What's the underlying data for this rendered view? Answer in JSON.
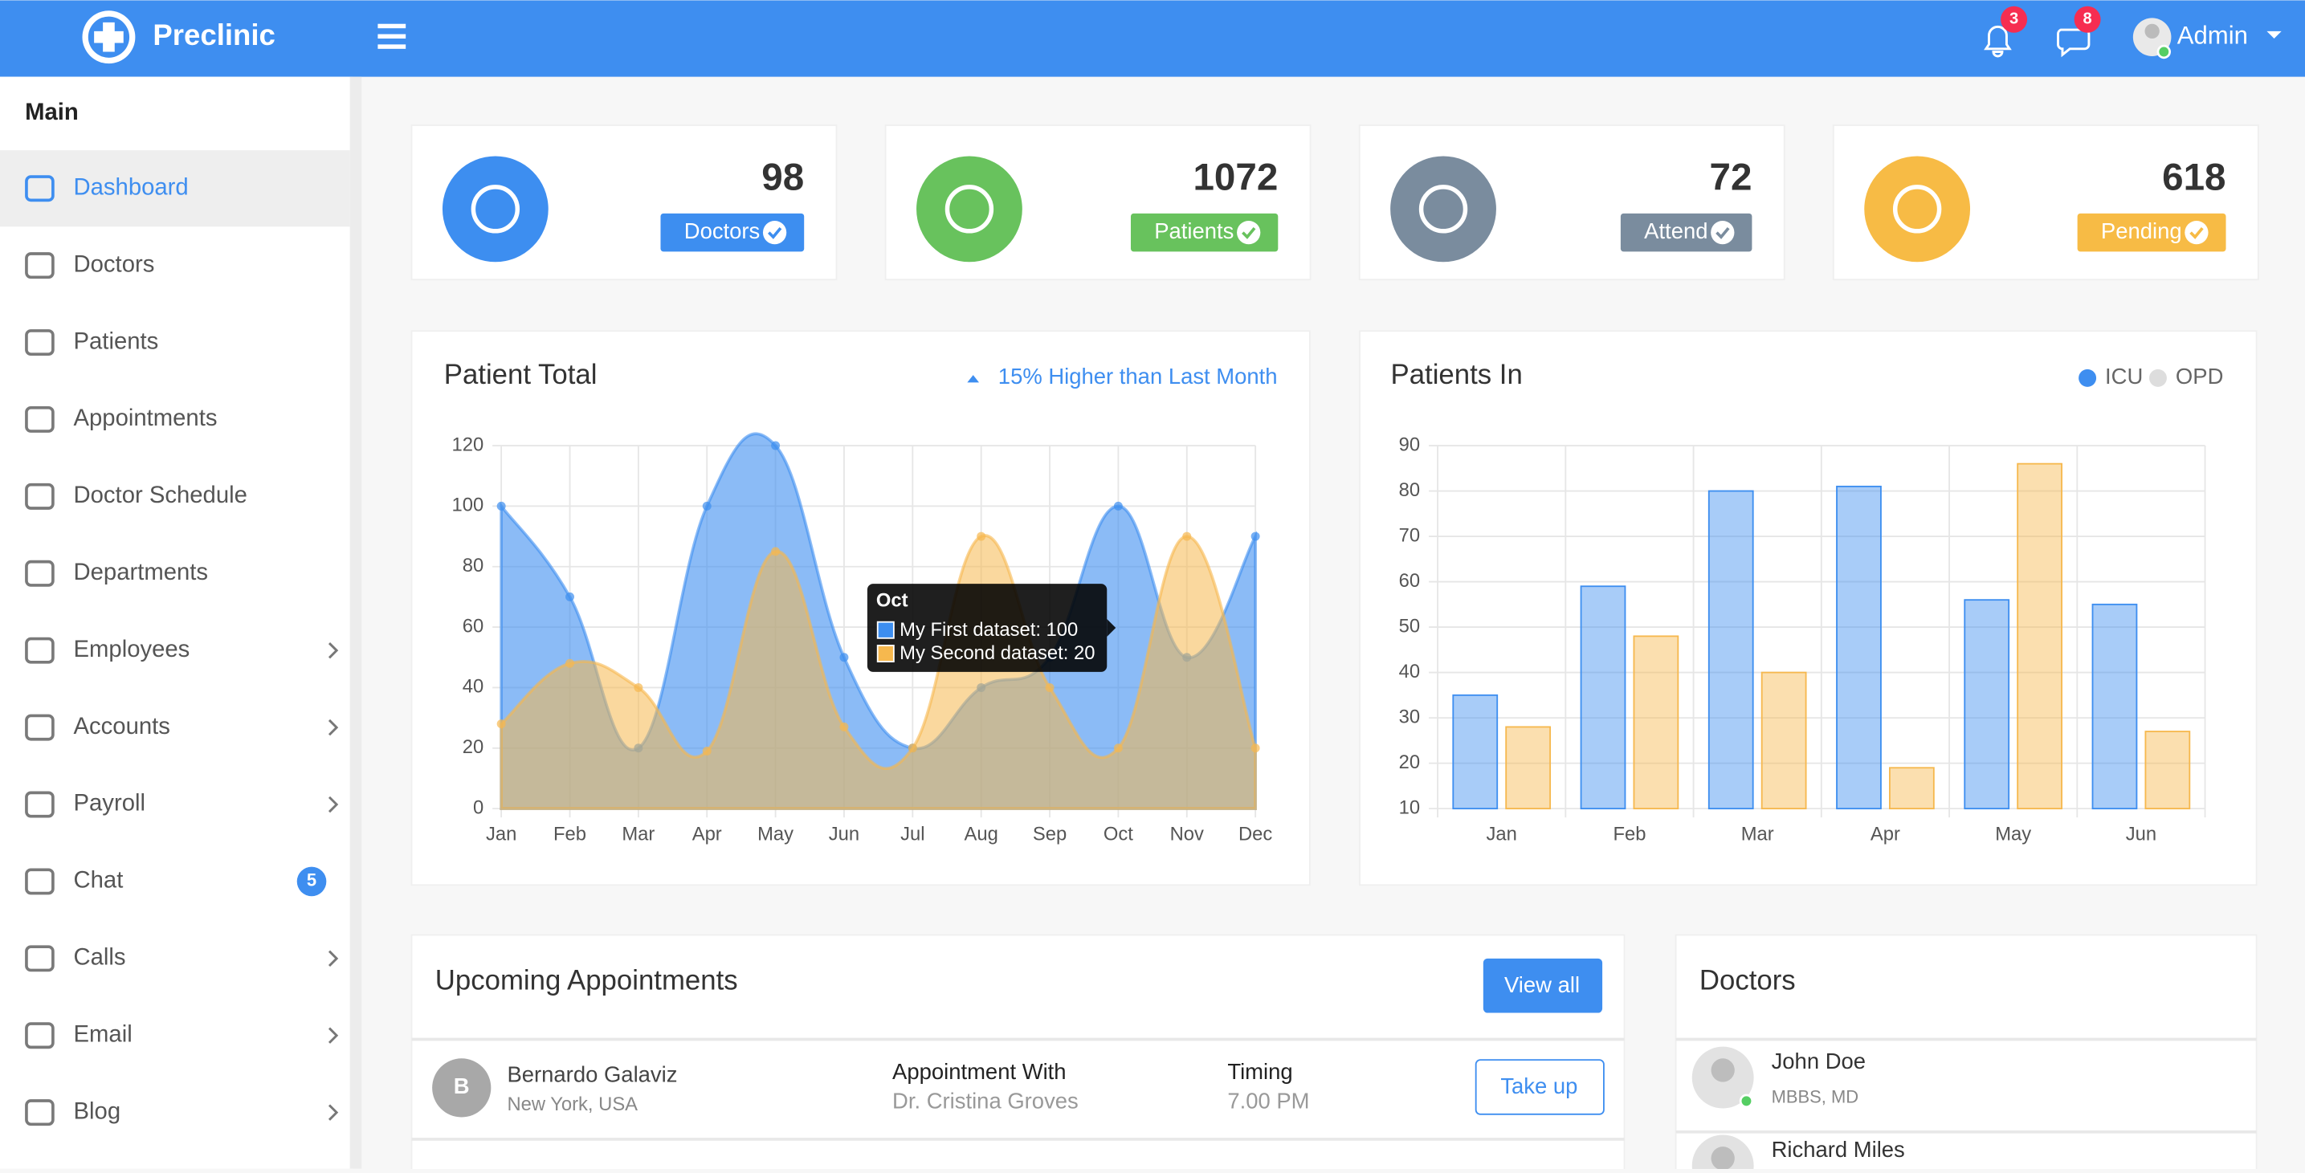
{
  "header": {
    "brand": "Preclinic",
    "notifications": "3",
    "messages": "8",
    "user": "Admin"
  },
  "sidebar": {
    "title": "Main",
    "items": [
      {
        "label": "Dashboard",
        "active": true
      },
      {
        "label": "Doctors"
      },
      {
        "label": "Patients"
      },
      {
        "label": "Appointments"
      },
      {
        "label": "Doctor Schedule"
      },
      {
        "label": "Departments"
      },
      {
        "label": "Employees",
        "submenu": true
      },
      {
        "label": "Accounts",
        "submenu": true
      },
      {
        "label": "Payroll",
        "submenu": true
      },
      {
        "label": "Chat",
        "badge": "5"
      },
      {
        "label": "Calls",
        "submenu": true
      },
      {
        "label": "Email",
        "submenu": true
      },
      {
        "label": "Blog",
        "submenu": true
      }
    ]
  },
  "stats": [
    {
      "value": 98,
      "label": "Doctors",
      "color": "#3d8ef0"
    },
    {
      "value": 1072,
      "label": "Patients",
      "color": "#68c25d"
    },
    {
      "value": 72,
      "label": "Attend",
      "color": "#7a8c9e"
    },
    {
      "value": 618,
      "label": "Pending",
      "color": "#f7bb45"
    }
  ],
  "patient_total": {
    "title": "Patient Total",
    "note": "15% Higher than Last Month",
    "tooltip": {
      "title": "Oct",
      "lines": [
        "My First dataset: 100",
        "My Second dataset: 20"
      ]
    },
    "chart": {
      "type": "line",
      "categories": [
        "Jan",
        "Feb",
        "Mar",
        "Apr",
        "May",
        "Jun",
        "Jul",
        "Aug",
        "Sep",
        "Oct",
        "Nov",
        "Dec"
      ],
      "series": [
        {
          "name": "My First dataset",
          "color": "#3d8ef0",
          "values": [
            100,
            70,
            20,
            100,
            120,
            50,
            20,
            40,
            50,
            100,
            50,
            90
          ]
        },
        {
          "name": "My Second dataset",
          "color": "#f6b84e",
          "values": [
            28,
            48,
            40,
            19,
            85,
            27,
            20,
            90,
            40,
            20,
            90,
            20
          ]
        }
      ],
      "ylim": [
        0,
        120
      ],
      "yticks": [
        0,
        20,
        40,
        60,
        80,
        100,
        120
      ],
      "grid": true
    }
  },
  "patients_in": {
    "title": "Patients In",
    "chart": {
      "type": "bar",
      "categories": [
        "Jan",
        "Feb",
        "Mar",
        "Apr",
        "May",
        "Jun"
      ],
      "series": [
        {
          "name": "ICU",
          "color": "#3d8ef0",
          "values": [
            35,
            59,
            80,
            81,
            56,
            55
          ]
        },
        {
          "name": "OPD",
          "color": "#f6b84e",
          "values": [
            28,
            48,
            40,
            19,
            86,
            27
          ]
        }
      ],
      "ylim": [
        10,
        90
      ],
      "yticks": [
        10,
        20,
        30,
        40,
        50,
        60,
        70,
        80,
        90
      ],
      "grid": true
    }
  },
  "appointments": {
    "title": "Upcoming Appointments",
    "button": "View all",
    "rows": [
      {
        "initial": "B",
        "name": "Bernardo Galaviz",
        "location": "New York, USA",
        "with_label": "Appointment With",
        "doctor": "Dr. Cristina Groves",
        "timing_label": "Timing",
        "time": "7.00 PM",
        "action": "Take up"
      }
    ]
  },
  "doctors": {
    "title": "Doctors",
    "list": [
      {
        "name": "John Doe",
        "degree": "MBBS, MD"
      },
      {
        "name": "Richard Miles"
      }
    ]
  }
}
